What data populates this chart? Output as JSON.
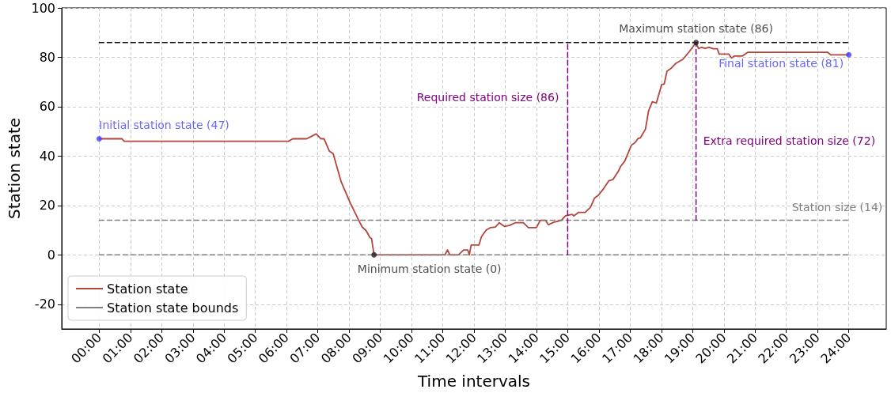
{
  "chart_data": {
    "type": "line",
    "xlabel": "Time intervals",
    "ylabel": "Station state",
    "xlim": [
      -1.2,
      25.2
    ],
    "ylim": [
      -30,
      100
    ],
    "xticks": [
      {
        "value": 0,
        "label": "00:00"
      },
      {
        "value": 1,
        "label": "01:00"
      },
      {
        "value": 2,
        "label": "02:00"
      },
      {
        "value": 3,
        "label": "03:00"
      },
      {
        "value": 4,
        "label": "04:00"
      },
      {
        "value": 5,
        "label": "05:00"
      },
      {
        "value": 6,
        "label": "06:00"
      },
      {
        "value": 7,
        "label": "07:00"
      },
      {
        "value": 8,
        "label": "08:00"
      },
      {
        "value": 9,
        "label": "09:00"
      },
      {
        "value": 10,
        "label": "10:00"
      },
      {
        "value": 11,
        "label": "11:00"
      },
      {
        "value": 12,
        "label": "12:00"
      },
      {
        "value": 13,
        "label": "13:00"
      },
      {
        "value": 14,
        "label": "14:00"
      },
      {
        "value": 15,
        "label": "15:00"
      },
      {
        "value": 16,
        "label": "16:00"
      },
      {
        "value": 17,
        "label": "17:00"
      },
      {
        "value": 18,
        "label": "18:00"
      },
      {
        "value": 19,
        "label": "19:00"
      },
      {
        "value": 20,
        "label": "20:00"
      },
      {
        "value": 21,
        "label": "21:00"
      },
      {
        "value": 22,
        "label": "22:00"
      },
      {
        "value": 23,
        "label": "23:00"
      },
      {
        "value": 24,
        "label": "24:00"
      }
    ],
    "yticks": [
      -20,
      0,
      20,
      40,
      60,
      80,
      100
    ],
    "grid": true,
    "legend": "bottom left",
    "marker": "none",
    "series": [
      {
        "name": "Station state",
        "color": "#b5443b",
        "line_style": "solid",
        "x": [
          0,
          0.73,
          0.8,
          6.06,
          6.2,
          6.64,
          6.8,
          6.95,
          7.1,
          7.2,
          7.37,
          7.49,
          7.75,
          8.04,
          8.29,
          8.42,
          8.55,
          8.67,
          8.72,
          8.8,
          11.07,
          11.15,
          11.23,
          11.5,
          11.67,
          11.8,
          11.85,
          11.91,
          12.16,
          12.24,
          12.39,
          12.52,
          12.69,
          12.81,
          12.98,
          13.15,
          13.32,
          13.58,
          13.74,
          14.0,
          14.12,
          14.29,
          14.38,
          14.55,
          14.8,
          14.93,
          15.14,
          15.2,
          15.35,
          15.56,
          15.73,
          15.86,
          15.98,
          16.15,
          16.32,
          16.45,
          16.62,
          16.7,
          16.83,
          17.04,
          17.16,
          17.25,
          17.33,
          17.49,
          17.59,
          17.71,
          17.84,
          18.01,
          18.09,
          18.18,
          18.3,
          18.47,
          18.69,
          18.9,
          19.11,
          19.19,
          19.28,
          19.4,
          19.53,
          19.66,
          19.79,
          19.85,
          20.16,
          20.25,
          20.33,
          20.59,
          20.76,
          23.33,
          23.42,
          24.0
        ],
        "values": [
          47,
          47,
          46,
          46,
          47,
          47,
          48,
          49,
          47,
          47,
          42,
          41,
          29.5,
          21,
          14.5,
          11.3,
          9.7,
          7,
          6.6,
          0,
          0,
          2,
          0,
          0,
          2,
          2,
          0,
          4,
          4,
          7.4,
          10,
          11,
          11.3,
          13,
          11.5,
          12,
          13,
          13,
          11,
          11,
          14,
          14,
          12.2,
          13.2,
          14,
          15.8,
          16.4,
          15.8,
          17.2,
          17.2,
          19.3,
          23,
          24.1,
          26.8,
          30,
          30.5,
          33.8,
          35.9,
          38,
          44.4,
          45.5,
          47.1,
          47.4,
          50.9,
          58.3,
          62,
          61.5,
          69,
          69.2,
          74.4,
          75.4,
          77.6,
          79.2,
          82.4,
          86,
          83.5,
          84,
          83.6,
          84,
          83.5,
          83.5,
          81.3,
          81.3,
          79.7,
          80.5,
          80.5,
          82,
          82,
          81,
          81
        ]
      },
      {
        "name": "Station state bounds",
        "color": "#808080",
        "line_style": "dashed",
        "x": [
          0,
          24
        ],
        "values": [
          14,
          14
        ]
      },
      {
        "color": "#808080",
        "line_style": "dashed",
        "x": [
          0,
          24
        ],
        "values": [
          0,
          0
        ]
      },
      {
        "color": "#000000",
        "line_style": "dashed",
        "x": [
          0,
          24
        ],
        "values": [
          86,
          86
        ]
      },
      {
        "name": "Required station size (86)",
        "color": "#800080",
        "line_style": "dashed",
        "x": [
          15,
          15
        ],
        "values": [
          0,
          86
        ]
      },
      {
        "name": "Extra required station size (72)",
        "color": "#800080",
        "line_style": "dashed",
        "x": [
          19.11,
          19.11
        ],
        "values": [
          14,
          86
        ]
      },
      {
        "type": "scatter",
        "marker": "circle",
        "name": "Initial station state (47)",
        "color": "#3f3fff",
        "x": [
          0
        ],
        "values": [
          47
        ]
      },
      {
        "type": "scatter",
        "marker": "circle",
        "name": "Final station state (81)",
        "color": "#3f3fff",
        "x": [
          24
        ],
        "values": [
          81
        ]
      },
      {
        "type": "scatter",
        "marker": "circle",
        "name": "Minimum station state (0)",
        "color": "#222222",
        "x": [
          8.8
        ],
        "values": [
          0
        ]
      },
      {
        "type": "scatter",
        "marker": "circle",
        "name": "Maximum station state (86)",
        "color": "#222222",
        "x": [
          19.11
        ],
        "values": [
          86
        ]
      }
    ],
    "annotations": [
      "Station size (14)"
    ]
  }
}
